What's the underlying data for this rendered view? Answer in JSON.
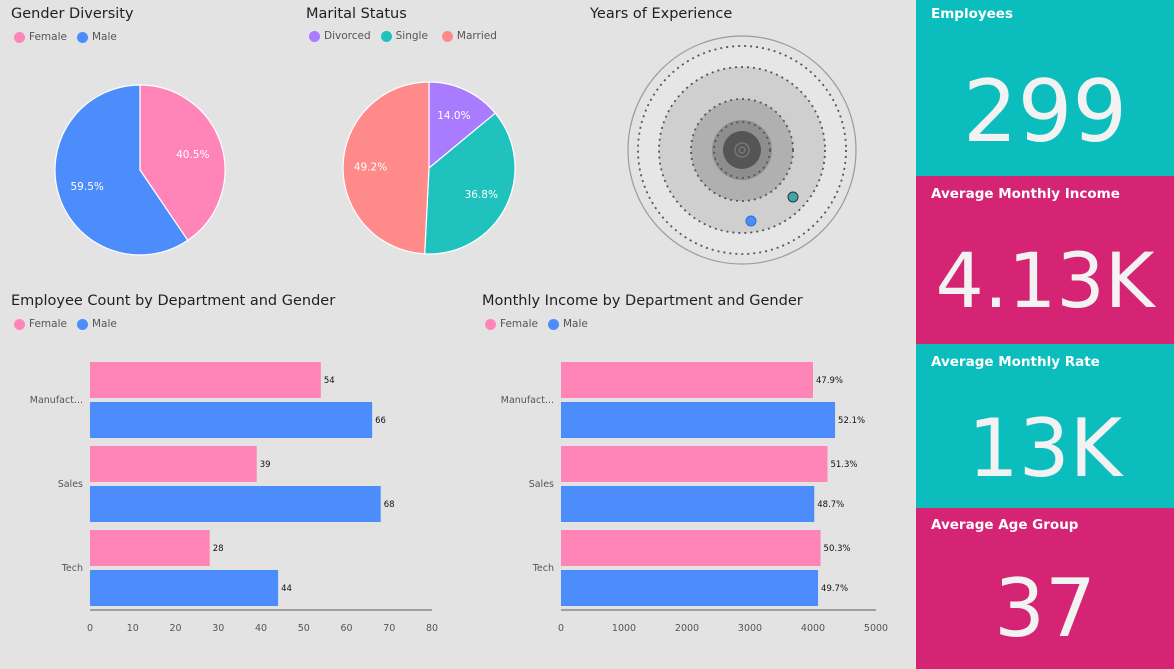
{
  "colors": {
    "female": "#ff85b8",
    "male": "#4d8dfb",
    "divorced": "#a97bff",
    "single": "#1fc2bd",
    "married": "#ff8a8a",
    "teal_card": "#0bbdbd",
    "magenta_card": "#d42473"
  },
  "gender_diversity": {
    "title": "Gender Diversity",
    "legend": [
      "Female",
      "Male"
    ]
  },
  "marital_status": {
    "title": "Marital Status",
    "legend": [
      "Divorced",
      "Single",
      "Married"
    ]
  },
  "years_experience": {
    "title": "Years of Experience"
  },
  "employee_count": {
    "title": "Employee Count by Department and Gender",
    "legend": [
      "Female",
      "Male"
    ]
  },
  "monthly_income": {
    "title": "Monthly Income by Department and Gender",
    "legend": [
      "Female",
      "Male"
    ]
  },
  "kpis": [
    {
      "title": "Employees",
      "value": "299",
      "color": "teal"
    },
    {
      "title": "Average Monthly Income",
      "value": "4.13K",
      "color": "magenta"
    },
    {
      "title": "Average Monthly Rate",
      "value": "13K",
      "color": "teal"
    },
    {
      "title": "Average Age Group",
      "value": "37",
      "color": "magenta"
    }
  ],
  "chart_data": [
    {
      "type": "pie",
      "title": "Gender Diversity",
      "labels": [
        "Female",
        "Male"
      ],
      "values": [
        40.5,
        59.5
      ],
      "data_labels": [
        "40.5%",
        "59.5%"
      ]
    },
    {
      "type": "pie",
      "title": "Marital Status",
      "labels": [
        "Divorced",
        "Single",
        "Married"
      ],
      "values": [
        14.0,
        36.8,
        49.2
      ],
      "data_labels": [
        "14.0%",
        "36.8%",
        "49.2%"
      ]
    },
    {
      "type": "bar",
      "orientation": "horizontal",
      "title": "Employee Count by Department and Gender",
      "categories": [
        "Manufact...",
        "Sales",
        "Tech"
      ],
      "series": [
        {
          "name": "Female",
          "values": [
            54,
            39,
            28
          ],
          "data_labels": [
            "54",
            "39",
            "28"
          ]
        },
        {
          "name": "Male",
          "values": [
            66,
            68,
            44
          ],
          "data_labels": [
            "66",
            "68",
            "44"
          ]
        }
      ],
      "xlim": [
        0,
        80
      ],
      "xticks": [
        "0",
        "10",
        "20",
        "30",
        "40",
        "50",
        "60",
        "70",
        "80"
      ]
    },
    {
      "type": "bar",
      "orientation": "horizontal",
      "title": "Monthly Income by Department and Gender",
      "categories": [
        "Manufact...",
        "Sales",
        "Tech"
      ],
      "series": [
        {
          "name": "Female",
          "values": [
            4000,
            4230,
            4120
          ],
          "data_labels": [
            "47.9%",
            "51.3%",
            "50.3%"
          ]
        },
        {
          "name": "Male",
          "values": [
            4350,
            4020,
            4080
          ],
          "data_labels": [
            "52.1%",
            "48.7%",
            "49.7%"
          ]
        }
      ],
      "xlim": [
        0,
        5000
      ],
      "xticks": [
        "0",
        "1000",
        "2000",
        "3000",
        "4000",
        "5000"
      ]
    }
  ]
}
